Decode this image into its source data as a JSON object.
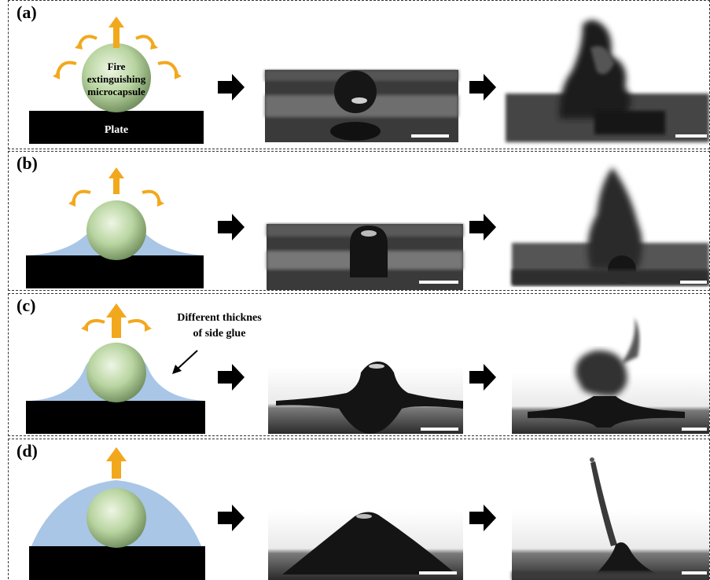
{
  "panels": [
    {
      "label": "(a)",
      "sphere_label_lines": [
        "Fire",
        "extinguishing",
        "microcapsule"
      ],
      "plate_label": "Plate",
      "glue": "none"
    },
    {
      "label": "(b)",
      "glue": "thin"
    },
    {
      "label": "(c)",
      "annotation_lines": [
        "Different thicknes",
        "of side glue"
      ],
      "glue": "medium"
    },
    {
      "label": "(d)",
      "glue": "thick"
    }
  ],
  "colors": {
    "sphere": "#b8d4a0",
    "glue": "#a9c6e6",
    "plate": "#000000",
    "arrow": "#f2a81d",
    "scale_bar": "#ffffff"
  },
  "icons": [
    "upward-arrow-icon",
    "curved-arrow-icon",
    "step-arrow-icon",
    "pointer-arrow-icon"
  ]
}
